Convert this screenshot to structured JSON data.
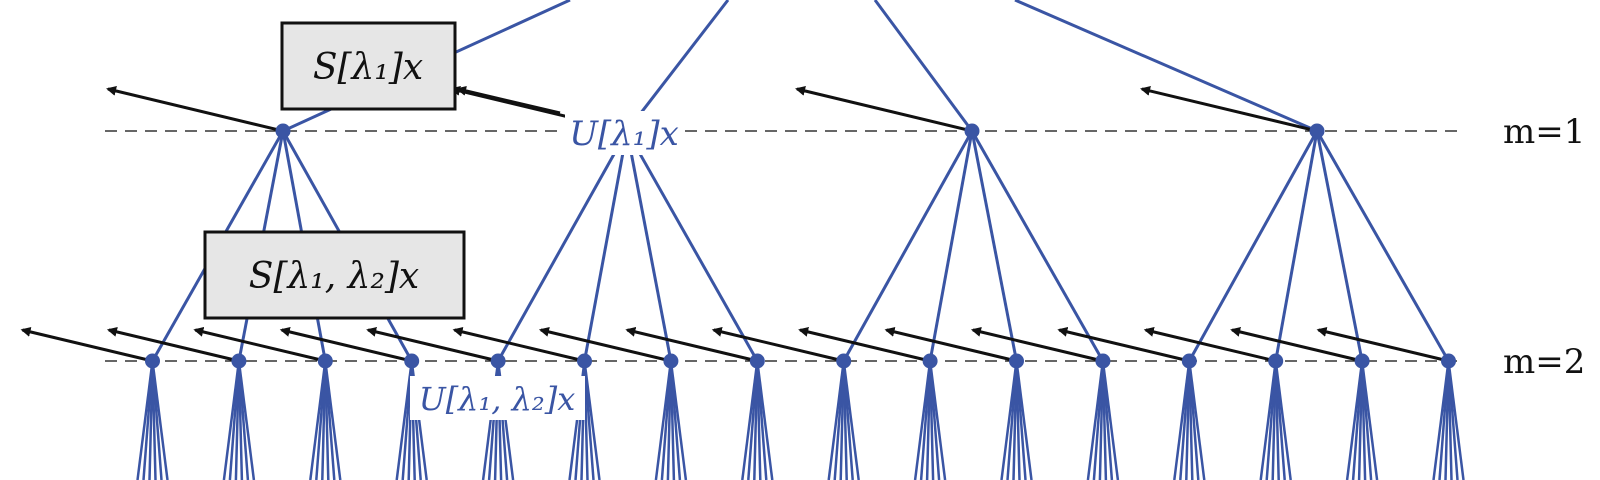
{
  "colors": {
    "tree": "#3a55a4",
    "arrow": "#111111",
    "box_fill": "#e6e6e6",
    "dashed": "#333333"
  },
  "levels": {
    "m1": "m=1",
    "m2": "m=2"
  },
  "labels": {
    "s1": "S[λ₁]x",
    "s12": "S[λ₁, λ₂]x",
    "u1": "U[λ₁]x",
    "u12": "U[λ₁, λ₂]x"
  },
  "tree": {
    "level1_node_count": 4,
    "level2_nodes_per_parent": 4,
    "fanout_below_level2": 6
  }
}
